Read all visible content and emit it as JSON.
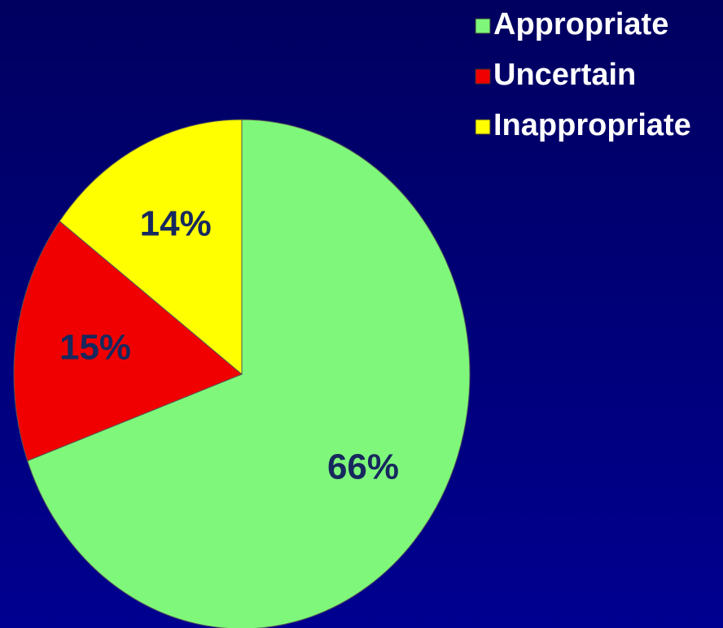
{
  "chart_data": {
    "type": "pie",
    "categories": [
      "Appropriate",
      "Uncertain",
      "Inappropriate"
    ],
    "values": [
      66,
      15,
      14
    ],
    "value_labels": [
      "66%",
      "15%",
      "14%"
    ],
    "colors": [
      "#7ef77a",
      "#f00000",
      "#ffff00"
    ],
    "legend": "top-right"
  }
}
